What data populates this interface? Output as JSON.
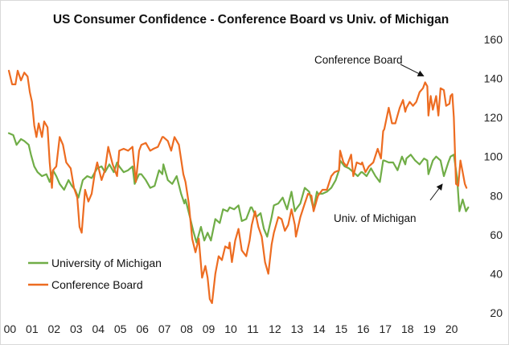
{
  "chart_data": {
    "type": "line",
    "title": "US Consumer Confidence - Conference Board vs Univ. of Michigan",
    "xlabel": "",
    "ylabel": "",
    "x_tick_labels": [
      "00",
      "01",
      "02",
      "03",
      "04",
      "05",
      "06",
      "07",
      "08",
      "09",
      "10",
      "11",
      "12",
      "13",
      "14",
      "15",
      "16",
      "17",
      "18",
      "19",
      "20"
    ],
    "xlim": [
      2000.0,
      2020.9
    ],
    "ylim": [
      20,
      160
    ],
    "y_ticks": [
      20,
      40,
      60,
      80,
      100,
      120,
      140,
      160
    ],
    "y_axis_side": "right",
    "grid": false,
    "legend_position": "bottom-left",
    "series": [
      {
        "name": "University of Michigan",
        "color": "#70ad47",
        "points": [
          [
            2000.0,
            112
          ],
          [
            2000.2,
            111
          ],
          [
            2000.35,
            106
          ],
          [
            2000.55,
            109
          ],
          [
            2000.7,
            108
          ],
          [
            2000.9,
            106
          ],
          [
            2001.0,
            101
          ],
          [
            2001.15,
            95
          ],
          [
            2001.3,
            92
          ],
          [
            2001.5,
            90
          ],
          [
            2001.7,
            91
          ],
          [
            2001.85,
            87
          ],
          [
            2002.0,
            93
          ],
          [
            2002.15,
            90
          ],
          [
            2002.3,
            86
          ],
          [
            2002.5,
            83
          ],
          [
            2002.7,
            88
          ],
          [
            2002.85,
            85
          ],
          [
            2003.0,
            83
          ],
          [
            2003.15,
            79
          ],
          [
            2003.35,
            88
          ],
          [
            2003.55,
            90
          ],
          [
            2003.75,
            89
          ],
          [
            2003.9,
            92
          ],
          [
            2004.0,
            94
          ],
          [
            2004.2,
            95
          ],
          [
            2004.35,
            92
          ],
          [
            2004.55,
            96
          ],
          [
            2004.75,
            92
          ],
          [
            2004.9,
            97
          ],
          [
            2005.0,
            95
          ],
          [
            2005.2,
            92
          ],
          [
            2005.4,
            93
          ],
          [
            2005.6,
            95
          ],
          [
            2005.7,
            86
          ],
          [
            2005.9,
            91
          ],
          [
            2006.0,
            91
          ],
          [
            2006.2,
            88
          ],
          [
            2006.4,
            84
          ],
          [
            2006.6,
            85
          ],
          [
            2006.8,
            93
          ],
          [
            2006.95,
            91
          ],
          [
            2007.0,
            96
          ],
          [
            2007.2,
            88
          ],
          [
            2007.4,
            86
          ],
          [
            2007.6,
            90
          ],
          [
            2007.8,
            81
          ],
          [
            2007.95,
            76
          ],
          [
            2008.0,
            78
          ],
          [
            2008.2,
            69
          ],
          [
            2008.35,
            62
          ],
          [
            2008.5,
            56
          ],
          [
            2008.7,
            64
          ],
          [
            2008.85,
            57
          ],
          [
            2009.0,
            61
          ],
          [
            2009.15,
            57
          ],
          [
            2009.35,
            68
          ],
          [
            2009.55,
            66
          ],
          [
            2009.7,
            73
          ],
          [
            2009.9,
            72
          ],
          [
            2010.0,
            74
          ],
          [
            2010.2,
            73
          ],
          [
            2010.4,
            75
          ],
          [
            2010.55,
            67
          ],
          [
            2010.75,
            68
          ],
          [
            2010.95,
            74
          ],
          [
            2011.0,
            74
          ],
          [
            2011.2,
            69
          ],
          [
            2011.4,
            71
          ],
          [
            2011.55,
            63
          ],
          [
            2011.7,
            59
          ],
          [
            2011.9,
            69
          ],
          [
            2012.0,
            75
          ],
          [
            2012.2,
            76
          ],
          [
            2012.4,
            79
          ],
          [
            2012.6,
            73
          ],
          [
            2012.8,
            82
          ],
          [
            2012.95,
            72
          ],
          [
            2013.0,
            73
          ],
          [
            2013.2,
            76
          ],
          [
            2013.4,
            84
          ],
          [
            2013.6,
            82
          ],
          [
            2013.8,
            73
          ],
          [
            2013.95,
            82
          ],
          [
            2014.0,
            81
          ],
          [
            2014.2,
            81
          ],
          [
            2014.4,
            82
          ],
          [
            2014.6,
            84
          ],
          [
            2014.8,
            88
          ],
          [
            2014.95,
            93
          ],
          [
            2015.0,
            98
          ],
          [
            2015.2,
            95
          ],
          [
            2015.4,
            94
          ],
          [
            2015.6,
            92
          ],
          [
            2015.8,
            90
          ],
          [
            2015.95,
            92
          ],
          [
            2016.0,
            92
          ],
          [
            2016.2,
            90
          ],
          [
            2016.4,
            94
          ],
          [
            2016.6,
            90
          ],
          [
            2016.8,
            87
          ],
          [
            2016.95,
            98
          ],
          [
            2017.0,
            98
          ],
          [
            2017.2,
            97
          ],
          [
            2017.4,
            97
          ],
          [
            2017.6,
            93
          ],
          [
            2017.8,
            100
          ],
          [
            2017.95,
            96
          ],
          [
            2018.0,
            99
          ],
          [
            2018.2,
            101
          ],
          [
            2018.4,
            98
          ],
          [
            2018.6,
            96
          ],
          [
            2018.8,
            99
          ],
          [
            2018.95,
            98
          ],
          [
            2019.0,
            91
          ],
          [
            2019.2,
            98
          ],
          [
            2019.35,
            100
          ],
          [
            2019.55,
            98
          ],
          [
            2019.7,
            90
          ],
          [
            2019.9,
            97
          ],
          [
            2020.0,
            100
          ],
          [
            2020.15,
            101
          ],
          [
            2020.3,
            89
          ],
          [
            2020.4,
            72
          ],
          [
            2020.55,
            78
          ],
          [
            2020.7,
            72
          ],
          [
            2020.8,
            74
          ]
        ]
      },
      {
        "name": "Conference Board",
        "color": "#ed6c21",
        "points": [
          [
            2000.0,
            144
          ],
          [
            2000.15,
            137
          ],
          [
            2000.3,
            137
          ],
          [
            2000.4,
            144
          ],
          [
            2000.55,
            139
          ],
          [
            2000.7,
            143
          ],
          [
            2000.85,
            141
          ],
          [
            2000.95,
            133
          ],
          [
            2001.05,
            128
          ],
          [
            2001.15,
            116
          ],
          [
            2001.25,
            110
          ],
          [
            2001.35,
            117
          ],
          [
            2001.5,
            110
          ],
          [
            2001.6,
            118
          ],
          [
            2001.75,
            115
          ],
          [
            2001.85,
            97
          ],
          [
            2001.95,
            84
          ],
          [
            2002.0,
            93
          ],
          [
            2002.15,
            95
          ],
          [
            2002.3,
            110
          ],
          [
            2002.45,
            106
          ],
          [
            2002.6,
            97
          ],
          [
            2002.8,
            94
          ],
          [
            2002.95,
            84
          ],
          [
            2003.1,
            79
          ],
          [
            2003.2,
            64
          ],
          [
            2003.3,
            61
          ],
          [
            2003.45,
            83
          ],
          [
            2003.6,
            77
          ],
          [
            2003.75,
            81
          ],
          [
            2003.9,
            92
          ],
          [
            2004.0,
            97
          ],
          [
            2004.2,
            88
          ],
          [
            2004.35,
            93
          ],
          [
            2004.5,
            105
          ],
          [
            2004.7,
            96
          ],
          [
            2004.9,
            90
          ],
          [
            2005.0,
            103
          ],
          [
            2005.2,
            104
          ],
          [
            2005.4,
            103
          ],
          [
            2005.6,
            105
          ],
          [
            2005.75,
            87
          ],
          [
            2005.9,
            103
          ],
          [
            2006.0,
            106
          ],
          [
            2006.2,
            107
          ],
          [
            2006.4,
            103
          ],
          [
            2006.55,
            104
          ],
          [
            2006.75,
            105
          ],
          [
            2006.95,
            110
          ],
          [
            2007.0,
            110
          ],
          [
            2007.2,
            108
          ],
          [
            2007.35,
            103
          ],
          [
            2007.5,
            110
          ],
          [
            2007.7,
            106
          ],
          [
            2007.9,
            91
          ],
          [
            2008.0,
            87
          ],
          [
            2008.15,
            76
          ],
          [
            2008.3,
            58
          ],
          [
            2008.45,
            51
          ],
          [
            2008.6,
            58
          ],
          [
            2008.75,
            38
          ],
          [
            2008.9,
            44
          ],
          [
            2009.0,
            38
          ],
          [
            2009.1,
            27
          ],
          [
            2009.2,
            25
          ],
          [
            2009.35,
            40
          ],
          [
            2009.5,
            49
          ],
          [
            2009.65,
            47
          ],
          [
            2009.8,
            54
          ],
          [
            2009.95,
            53
          ],
          [
            2010.0,
            56
          ],
          [
            2010.1,
            46
          ],
          [
            2010.25,
            57
          ],
          [
            2010.4,
            63
          ],
          [
            2010.55,
            52
          ],
          [
            2010.75,
            49
          ],
          [
            2010.9,
            57
          ],
          [
            2011.0,
            65
          ],
          [
            2011.15,
            72
          ],
          [
            2011.3,
            64
          ],
          [
            2011.45,
            59
          ],
          [
            2011.6,
            46
          ],
          [
            2011.75,
            40
          ],
          [
            2011.9,
            55
          ],
          [
            2012.0,
            61
          ],
          [
            2012.2,
            69
          ],
          [
            2012.35,
            68
          ],
          [
            2012.5,
            62
          ],
          [
            2012.65,
            65
          ],
          [
            2012.8,
            73
          ],
          [
            2012.95,
            65
          ],
          [
            2013.0,
            59
          ],
          [
            2013.2,
            69
          ],
          [
            2013.4,
            76
          ],
          [
            2013.55,
            81
          ],
          [
            2013.7,
            80
          ],
          [
            2013.8,
            72
          ],
          [
            2013.95,
            78
          ],
          [
            2014.0,
            80
          ],
          [
            2014.2,
            83
          ],
          [
            2014.4,
            83
          ],
          [
            2014.6,
            90
          ],
          [
            2014.75,
            92
          ],
          [
            2014.95,
            93
          ],
          [
            2015.0,
            103
          ],
          [
            2015.15,
            97
          ],
          [
            2015.3,
            95
          ],
          [
            2015.5,
            101
          ],
          [
            2015.6,
            90
          ],
          [
            2015.75,
            97
          ],
          [
            2015.95,
            96
          ],
          [
            2016.0,
            97
          ],
          [
            2016.15,
            92
          ],
          [
            2016.3,
            95
          ],
          [
            2016.5,
            97
          ],
          [
            2016.7,
            104
          ],
          [
            2016.85,
            99
          ],
          [
            2016.95,
            113
          ],
          [
            2017.0,
            114
          ],
          [
            2017.2,
            125
          ],
          [
            2017.35,
            117
          ],
          [
            2017.5,
            117
          ],
          [
            2017.7,
            125
          ],
          [
            2017.85,
            129
          ],
          [
            2017.95,
            123
          ],
          [
            2018.0,
            125
          ],
          [
            2018.15,
            128
          ],
          [
            2018.3,
            126
          ],
          [
            2018.45,
            128
          ],
          [
            2018.6,
            133
          ],
          [
            2018.75,
            135
          ],
          [
            2018.85,
            138
          ],
          [
            2018.95,
            136
          ],
          [
            2019.0,
            121
          ],
          [
            2019.1,
            131
          ],
          [
            2019.2,
            124
          ],
          [
            2019.35,
            131
          ],
          [
            2019.45,
            121
          ],
          [
            2019.55,
            135
          ],
          [
            2019.7,
            134
          ],
          [
            2019.8,
            126
          ],
          [
            2019.95,
            127
          ],
          [
            2020.0,
            131
          ],
          [
            2020.08,
            132
          ],
          [
            2020.15,
            120
          ],
          [
            2020.25,
            86
          ],
          [
            2020.35,
            85
          ],
          [
            2020.45,
            98
          ],
          [
            2020.55,
            92
          ],
          [
            2020.65,
            86
          ],
          [
            2020.72,
            84
          ]
        ]
      }
    ],
    "annotations": [
      {
        "text": "Conference Board",
        "target": [
          2018.85,
          138
        ]
      },
      {
        "text": "Univ. of Michigan",
        "target": [
          2019.7,
          90
        ]
      }
    ]
  }
}
